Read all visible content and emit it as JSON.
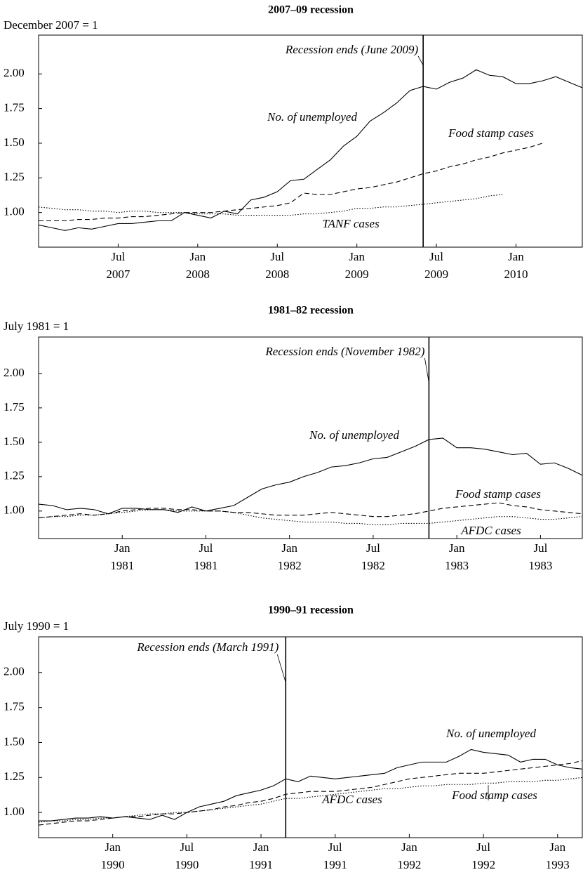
{
  "chart_data": [
    {
      "type": "line",
      "title": "2007–09 recession",
      "ylabel": "December 2007 = 1",
      "x": [
        "2007-01",
        "2007-02",
        "2007-03",
        "2007-04",
        "2007-05",
        "2007-06",
        "2007-07",
        "2007-08",
        "2007-09",
        "2007-10",
        "2007-11",
        "2007-12",
        "2008-01",
        "2008-02",
        "2008-03",
        "2008-04",
        "2008-05",
        "2008-06",
        "2008-07",
        "2008-08",
        "2008-09",
        "2008-10",
        "2008-11",
        "2008-12",
        "2009-01",
        "2009-02",
        "2009-03",
        "2009-04",
        "2009-05",
        "2009-06",
        "2009-07",
        "2009-08",
        "2009-09",
        "2009-10",
        "2009-11",
        "2009-12",
        "2010-01",
        "2010-02",
        "2010-03",
        "2010-04",
        "2010-05",
        "2010-06"
      ],
      "series": [
        {
          "name": "No. of unemployed",
          "color": "#000000",
          "dash": "solid",
          "values": [
            0.91,
            0.89,
            0.87,
            0.89,
            0.88,
            0.9,
            0.92,
            0.92,
            0.93,
            0.94,
            0.94,
            1.0,
            0.98,
            0.96,
            1.01,
            0.99,
            1.09,
            1.11,
            1.15,
            1.23,
            1.24,
            1.31,
            1.38,
            1.48,
            1.55,
            1.66,
            1.72,
            1.79,
            1.88,
            1.91,
            1.89,
            1.94,
            1.97,
            2.03,
            1.99,
            1.98,
            1.93,
            1.93,
            1.95,
            1.98,
            1.94,
            1.9
          ]
        },
        {
          "name": "Food stamp cases",
          "color": "#000000",
          "dash": "dashed",
          "values": [
            0.94,
            0.94,
            0.94,
            0.95,
            0.95,
            0.96,
            0.96,
            0.97,
            0.97,
            0.98,
            0.99,
            1.0,
            1.0,
            1.0,
            1.01,
            1.02,
            1.03,
            1.04,
            1.05,
            1.07,
            1.14,
            1.13,
            1.13,
            1.15,
            1.17,
            1.18,
            1.2,
            1.22,
            1.25,
            1.28,
            1.3,
            1.33,
            1.35,
            1.38,
            1.4,
            1.43,
            1.45,
            1.47,
            1.5,
            null,
            null,
            null
          ]
        },
        {
          "name": "TANF cases",
          "color": "#000000",
          "dash": "dotted",
          "values": [
            1.04,
            1.03,
            1.02,
            1.02,
            1.01,
            1.01,
            1.0,
            1.01,
            1.01,
            1.0,
            1.0,
            1.0,
            0.99,
            0.99,
            0.99,
            0.98,
            0.98,
            0.98,
            0.98,
            0.98,
            0.99,
            0.99,
            1.0,
            1.01,
            1.03,
            1.03,
            1.04,
            1.04,
            1.05,
            1.06,
            1.07,
            1.08,
            1.09,
            1.1,
            1.12,
            1.13,
            null,
            null,
            null,
            null,
            null,
            null
          ]
        }
      ],
      "xlim": [
        "2007-01",
        "2010-06"
      ],
      "xticks": [
        {
          "value": "2007-07",
          "label": [
            "Jul",
            "2007"
          ]
        },
        {
          "value": "2008-01",
          "label": [
            "Jan",
            "2008"
          ]
        },
        {
          "value": "2008-07",
          "label": [
            "Jul",
            "2008"
          ]
        },
        {
          "value": "2009-01",
          "label": [
            "Jan",
            "2009"
          ]
        },
        {
          "value": "2009-07",
          "label": [
            "Jul",
            "2009"
          ]
        },
        {
          "value": "2010-01",
          "label": [
            "Jan",
            "2010"
          ]
        }
      ],
      "ylim": [
        0.75,
        2.28
      ],
      "yticks": [
        {
          "value": 1,
          "label": "1.00"
        },
        {
          "value": 1.25,
          "label": "1.25"
        },
        {
          "value": 1.5,
          "label": "1.50"
        },
        {
          "value": 1.75,
          "label": "1.75"
        },
        {
          "value": 2,
          "label": "2.00"
        }
      ],
      "annotation": {
        "text": "Recession ends (June 2009)",
        "x": "2009-06"
      }
    },
    {
      "type": "line",
      "title": "1981–82 recession",
      "ylabel": "July 1981 = 1",
      "x": [
        "1980-07",
        "1980-08",
        "1980-09",
        "1980-10",
        "1980-11",
        "1980-12",
        "1981-01",
        "1981-02",
        "1981-03",
        "1981-04",
        "1981-05",
        "1981-06",
        "1981-07",
        "1981-08",
        "1981-09",
        "1981-10",
        "1981-11",
        "1981-12",
        "1982-01",
        "1982-02",
        "1982-03",
        "1982-04",
        "1982-05",
        "1982-06",
        "1982-07",
        "1982-08",
        "1982-09",
        "1982-10",
        "1982-11",
        "1982-12",
        "1983-01",
        "1983-02",
        "1983-03",
        "1983-04",
        "1983-05",
        "1983-06",
        "1983-07",
        "1983-08",
        "1983-09",
        "1983-10"
      ],
      "series": [
        {
          "name": "No. of unemployed",
          "color": "#000000",
          "dash": "solid",
          "values": [
            1.05,
            1.04,
            1.01,
            1.02,
            1.01,
            0.98,
            1.02,
            1.02,
            1.01,
            1.01,
            0.99,
            1.03,
            1.0,
            1.02,
            1.04,
            1.1,
            1.16,
            1.19,
            1.21,
            1.25,
            1.28,
            1.32,
            1.33,
            1.35,
            1.38,
            1.39,
            1.43,
            1.47,
            1.52,
            1.53,
            1.46,
            1.46,
            1.45,
            1.43,
            1.41,
            1.42,
            1.34,
            1.35,
            1.31,
            1.26
          ]
        },
        {
          "name": "Food stamp cases",
          "color": "#000000",
          "dash": "dashed",
          "values": [
            0.95,
            0.96,
            0.97,
            0.98,
            0.97,
            0.98,
            1.0,
            1.01,
            1.02,
            1.02,
            1.01,
            1.01,
            1.0,
            1.0,
            0.99,
            0.99,
            0.98,
            0.97,
            0.97,
            0.97,
            0.98,
            0.99,
            0.98,
            0.97,
            0.96,
            0.96,
            0.97,
            0.98,
            1.0,
            1.02,
            1.03,
            1.04,
            1.05,
            1.06,
            1.04,
            1.03,
            1.01,
            1.0,
            0.99,
            0.98
          ]
        },
        {
          "name": "AFDC cases",
          "color": "#000000",
          "dash": "dotted",
          "values": [
            0.95,
            0.96,
            0.96,
            0.97,
            0.97,
            0.98,
            0.99,
            1.0,
            1.01,
            1.01,
            1.0,
            1.0,
            1.0,
            1.0,
            0.99,
            0.97,
            0.95,
            0.94,
            0.93,
            0.92,
            0.92,
            0.92,
            0.91,
            0.91,
            0.9,
            0.9,
            0.91,
            0.91,
            0.91,
            0.92,
            0.93,
            0.94,
            0.95,
            0.96,
            0.96,
            0.95,
            0.94,
            0.94,
            0.95,
            0.96
          ]
        }
      ],
      "xlim": [
        "1980-07",
        "1983-10"
      ],
      "xticks": [
        {
          "value": "1981-01",
          "label": [
            "Jan",
            "1981"
          ]
        },
        {
          "value": "1981-07",
          "label": [
            "Jul",
            "1981"
          ]
        },
        {
          "value": "1982-01",
          "label": [
            "Jan",
            "1982"
          ]
        },
        {
          "value": "1982-07",
          "label": [
            "Jul",
            "1982"
          ]
        },
        {
          "value": "1983-01",
          "label": [
            "Jan",
            "1983"
          ]
        },
        {
          "value": "1983-07",
          "label": [
            "Jul",
            "1983"
          ]
        }
      ],
      "ylim": [
        0.8,
        2.265
      ],
      "yticks": [
        {
          "value": 1,
          "label": "1.00"
        },
        {
          "value": 1.25,
          "label": "1.25"
        },
        {
          "value": 1.5,
          "label": "1.50"
        },
        {
          "value": 1.75,
          "label": "1.75"
        },
        {
          "value": 2,
          "label": "2.00"
        }
      ],
      "annotation": {
        "text": "Recession ends (November 1982)",
        "x": "1982-11"
      }
    },
    {
      "type": "line",
      "title": "1990–91 recession",
      "ylabel": "July 1990 = 1",
      "x": [
        "1989-07",
        "1989-08",
        "1989-09",
        "1989-10",
        "1989-11",
        "1989-12",
        "1990-01",
        "1990-02",
        "1990-03",
        "1990-04",
        "1990-05",
        "1990-06",
        "1990-07",
        "1990-08",
        "1990-09",
        "1990-10",
        "1990-11",
        "1990-12",
        "1991-01",
        "1991-02",
        "1991-03",
        "1991-04",
        "1991-05",
        "1991-06",
        "1991-07",
        "1991-08",
        "1991-09",
        "1991-10",
        "1991-11",
        "1991-12",
        "1992-01",
        "1992-02",
        "1992-03",
        "1992-04",
        "1992-05",
        "1992-06",
        "1992-07",
        "1992-08",
        "1992-09",
        "1992-10",
        "1992-11",
        "1992-12",
        "1993-01",
        "1993-02",
        "1993-03"
      ],
      "series": [
        {
          "name": "No. of unemployed",
          "color": "#000000",
          "dash": "solid",
          "values": [
            0.94,
            0.94,
            0.95,
            0.96,
            0.96,
            0.97,
            0.96,
            0.97,
            0.96,
            0.95,
            0.98,
            0.95,
            1.0,
            1.04,
            1.06,
            1.08,
            1.12,
            1.14,
            1.16,
            1.19,
            1.24,
            1.22,
            1.26,
            1.25,
            1.24,
            1.25,
            1.26,
            1.27,
            1.28,
            1.32,
            1.34,
            1.36,
            1.36,
            1.36,
            1.4,
            1.45,
            1.43,
            1.42,
            1.41,
            1.36,
            1.38,
            1.38,
            1.34,
            1.32,
            1.31
          ]
        },
        {
          "name": "Food stamp cases",
          "color": "#000000",
          "dash": "dashed",
          "values": [
            0.91,
            0.92,
            0.93,
            0.94,
            0.94,
            0.95,
            0.96,
            0.97,
            0.97,
            0.98,
            0.99,
            0.99,
            1.0,
            1.01,
            1.02,
            1.04,
            1.05,
            1.07,
            1.08,
            1.1,
            1.13,
            1.14,
            1.15,
            1.15,
            1.15,
            1.16,
            1.17,
            1.18,
            1.2,
            1.22,
            1.24,
            1.25,
            1.26,
            1.27,
            1.28,
            1.28,
            1.28,
            1.29,
            1.3,
            1.31,
            1.32,
            1.33,
            1.34,
            1.35,
            1.37
          ]
        },
        {
          "name": "AFDC cases",
          "color": "#000000",
          "dash": "dotted",
          "values": [
            0.93,
            0.94,
            0.94,
            0.95,
            0.95,
            0.96,
            0.96,
            0.97,
            0.98,
            0.99,
            0.99,
            1.0,
            1.0,
            1.01,
            1.02,
            1.03,
            1.04,
            1.05,
            1.06,
            1.08,
            1.1,
            1.1,
            1.11,
            1.12,
            1.13,
            1.14,
            1.15,
            1.16,
            1.17,
            1.17,
            1.18,
            1.19,
            1.19,
            1.2,
            1.2,
            1.2,
            1.21,
            1.21,
            1.22,
            1.22,
            1.22,
            1.23,
            1.23,
            1.24,
            1.25
          ]
        }
      ],
      "xlim": [
        "1989-07",
        "1993-03"
      ],
      "xticks": [
        {
          "value": "1990-01",
          "label": [
            "Jan",
            "1990"
          ]
        },
        {
          "value": "1990-07",
          "label": [
            "Jul",
            "1990"
          ]
        },
        {
          "value": "1991-01",
          "label": [
            "Jan",
            "1991"
          ]
        },
        {
          "value": "1991-07",
          "label": [
            "Jul",
            "1991"
          ]
        },
        {
          "value": "1992-01",
          "label": [
            "Jan",
            "1992"
          ]
        },
        {
          "value": "1992-07",
          "label": [
            "Jul",
            "1992"
          ]
        },
        {
          "value": "1993-01",
          "label": [
            "Jan",
            "1993"
          ]
        }
      ],
      "ylim": [
        0.82,
        2.255
      ],
      "yticks": [
        {
          "value": 1,
          "label": "1.00"
        },
        {
          "value": 1.25,
          "label": "1.25"
        },
        {
          "value": 1.5,
          "label": "1.50"
        },
        {
          "value": 1.75,
          "label": "1.75"
        },
        {
          "value": 2,
          "label": "2.00"
        }
      ],
      "annotation": {
        "text": "Recession ends (March 1991)",
        "x": "1991-03"
      }
    }
  ]
}
